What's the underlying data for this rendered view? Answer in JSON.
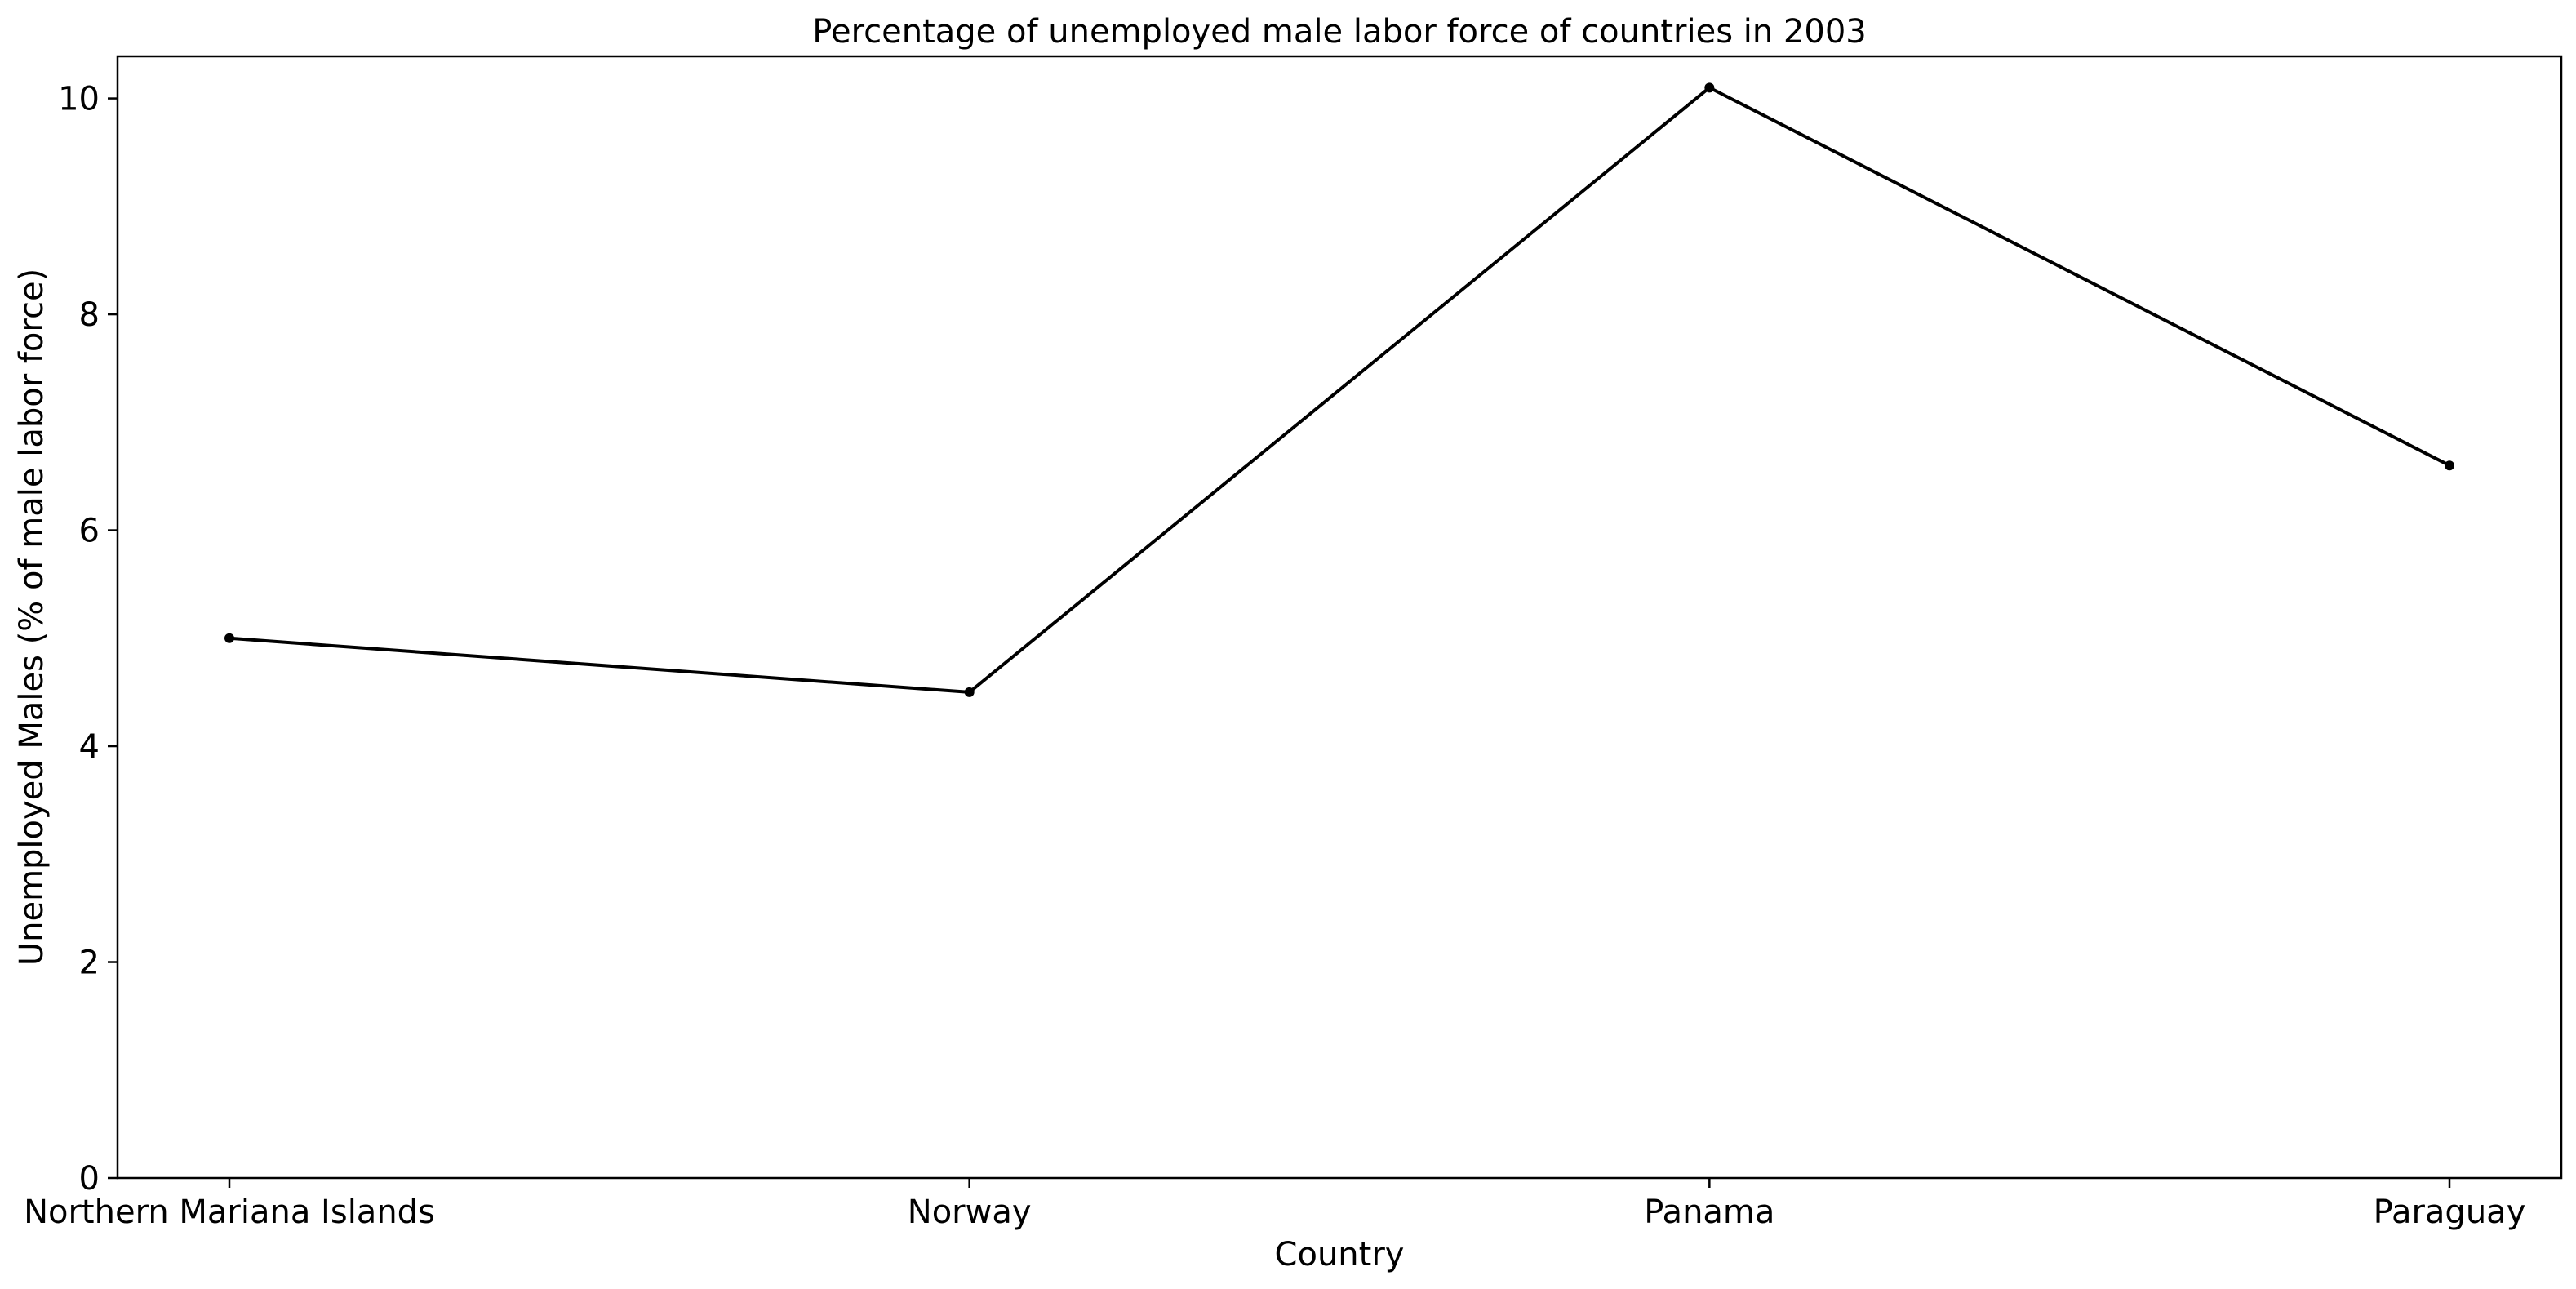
{
  "chart_data": {
    "type": "line",
    "title": "Percentage of unemployed male labor force of countries in 2003",
    "xlabel": "Country",
    "ylabel": "Unemployed Males (% of male labor force)",
    "categories": [
      "Northern Mariana Islands",
      "Norway",
      "Panama",
      "Paraguay"
    ],
    "series": [
      {
        "values": [
          5.0,
          4.5,
          10.1,
          6.6
        ],
        "color": "#000000",
        "marker": "dot"
      }
    ],
    "ylim": [
      0,
      10.39
    ],
    "yticks": [
      0,
      2,
      4,
      6,
      8,
      10
    ],
    "ytick_labels": [
      "0",
      "2",
      "4",
      "6",
      "8",
      "10"
    ],
    "grid": false,
    "legend": "none"
  }
}
